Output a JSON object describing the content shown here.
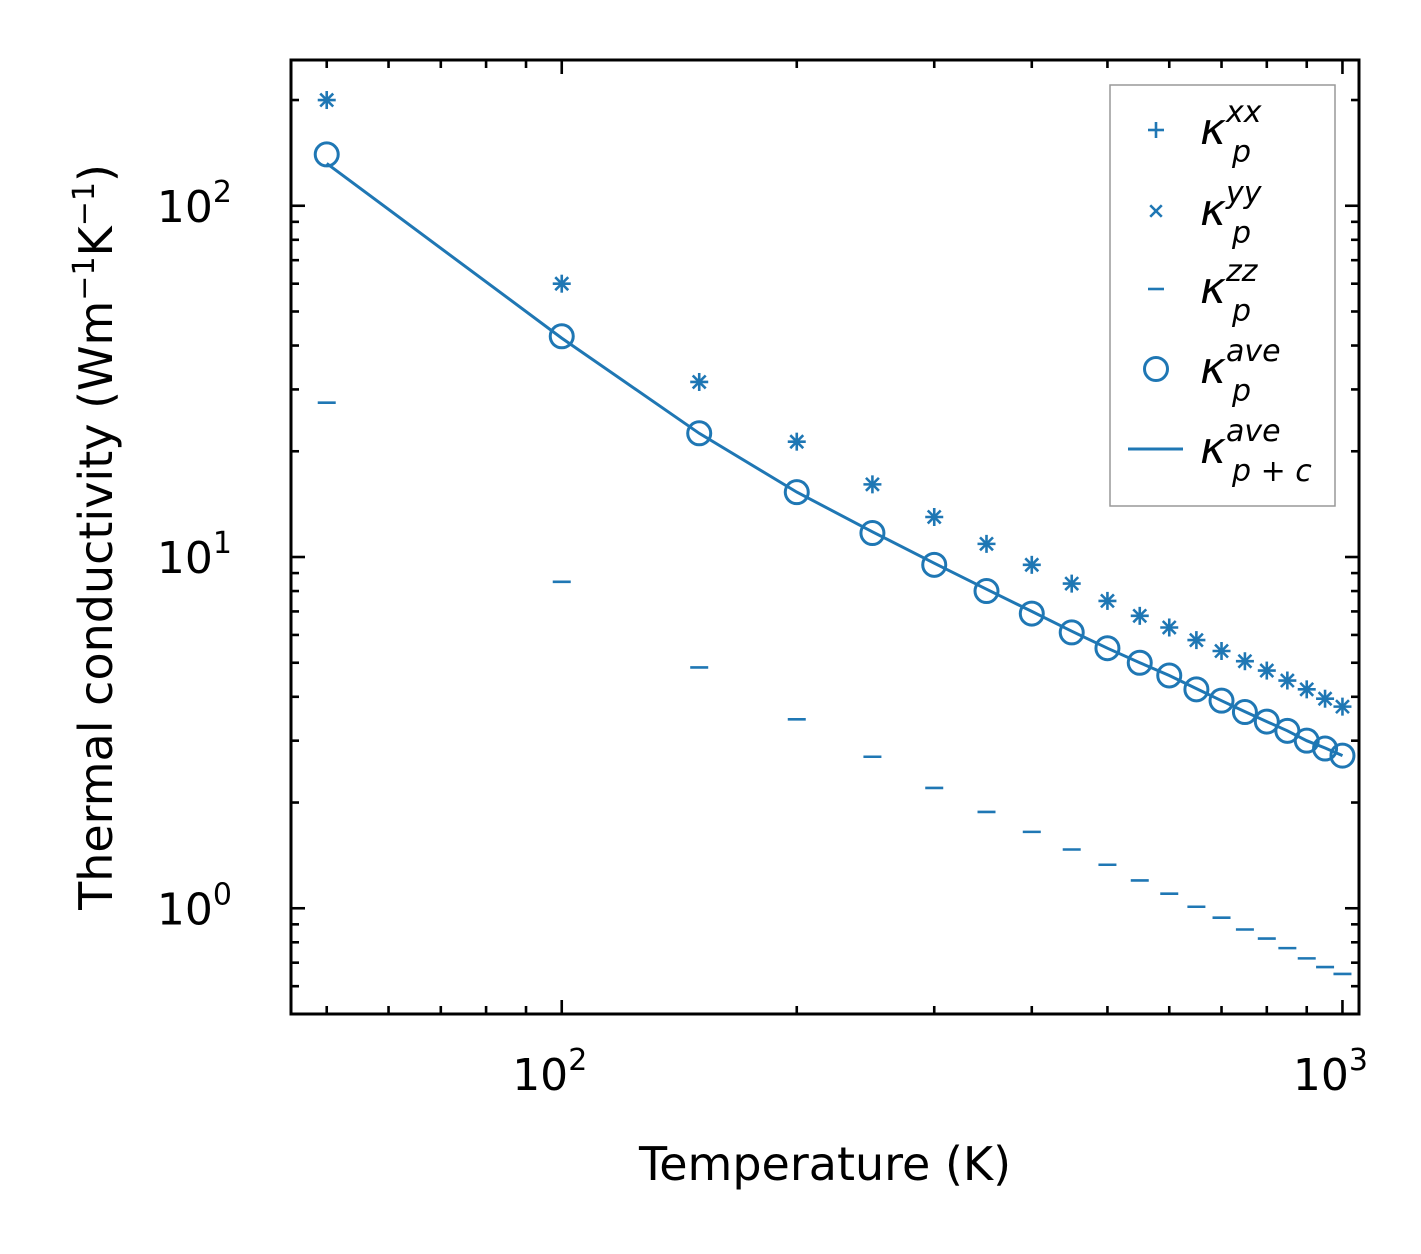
{
  "chart_data": {
    "type": "scatter",
    "scale": "log-log",
    "xlabel": "Temperature (K)",
    "ylabel_parts": [
      "Thermal conductivity (Wm",
      "−1",
      "K",
      "−1",
      ")"
    ],
    "xlim": [
      45,
      1050
    ],
    "ylim": [
      0.5,
      260
    ],
    "x_ticks": [
      {
        "base": "10",
        "exp": "2",
        "value": 100
      },
      {
        "base": "10",
        "exp": "3",
        "value": 1000
      }
    ],
    "y_ticks": [
      {
        "base": "10",
        "exp": "0",
        "value": 1
      },
      {
        "base": "10",
        "exp": "1",
        "value": 10
      },
      {
        "base": "10",
        "exp": "2",
        "value": 100
      }
    ],
    "x": [
      50,
      100,
      150,
      200,
      250,
      300,
      350,
      400,
      450,
      500,
      550,
      600,
      650,
      700,
      750,
      800,
      850,
      900,
      950,
      1000
    ],
    "series": [
      {
        "name": "kappa_p_xx",
        "legend_base": "κ",
        "legend_sub": "p",
        "legend_sup": "xx",
        "marker": "plus",
        "values": [
          200,
          60,
          31.5,
          21.3,
          16.1,
          13.0,
          10.9,
          9.5,
          8.4,
          7.5,
          6.8,
          6.3,
          5.8,
          5.4,
          5.05,
          4.75,
          4.45,
          4.2,
          3.95,
          3.75
        ]
      },
      {
        "name": "kappa_p_yy",
        "legend_base": "κ",
        "legend_sub": "p",
        "legend_sup": "yy",
        "marker": "x",
        "values": [
          200,
          60,
          31.5,
          21.3,
          16.1,
          13.0,
          10.9,
          9.5,
          8.4,
          7.5,
          6.8,
          6.3,
          5.8,
          5.4,
          5.05,
          4.75,
          4.45,
          4.2,
          3.95,
          3.75
        ]
      },
      {
        "name": "kappa_p_zz",
        "legend_base": "κ",
        "legend_sub": "p",
        "legend_sup": "zz",
        "marker": "hline",
        "values": [
          27.5,
          8.5,
          4.85,
          3.45,
          2.7,
          2.2,
          1.88,
          1.65,
          1.47,
          1.33,
          1.2,
          1.1,
          1.01,
          0.94,
          0.87,
          0.82,
          0.77,
          0.72,
          0.68,
          0.65
        ]
      },
      {
        "name": "kappa_p_ave",
        "legend_base": "κ",
        "legend_sub": "p",
        "legend_sup": "ave",
        "marker": "circle",
        "values": [
          140,
          42.5,
          22.5,
          15.3,
          11.7,
          9.5,
          8.0,
          6.9,
          6.1,
          5.5,
          5.0,
          4.6,
          4.2,
          3.9,
          3.62,
          3.4,
          3.2,
          3.0,
          2.85,
          2.72
        ]
      },
      {
        "name": "kappa_pc_ave",
        "legend_base": "κ",
        "legend_sub": "p + c",
        "legend_sup": "ave",
        "marker": "line",
        "values": [
          132,
          42,
          22.5,
          15.3,
          11.8,
          9.6,
          8.1,
          7.0,
          6.15,
          5.5,
          5.0,
          4.6,
          4.22,
          3.9,
          3.63,
          3.4,
          3.2,
          3.0,
          2.86,
          2.72
        ]
      }
    ],
    "legend_position": "top-right",
    "color": "#1f77b4"
  }
}
